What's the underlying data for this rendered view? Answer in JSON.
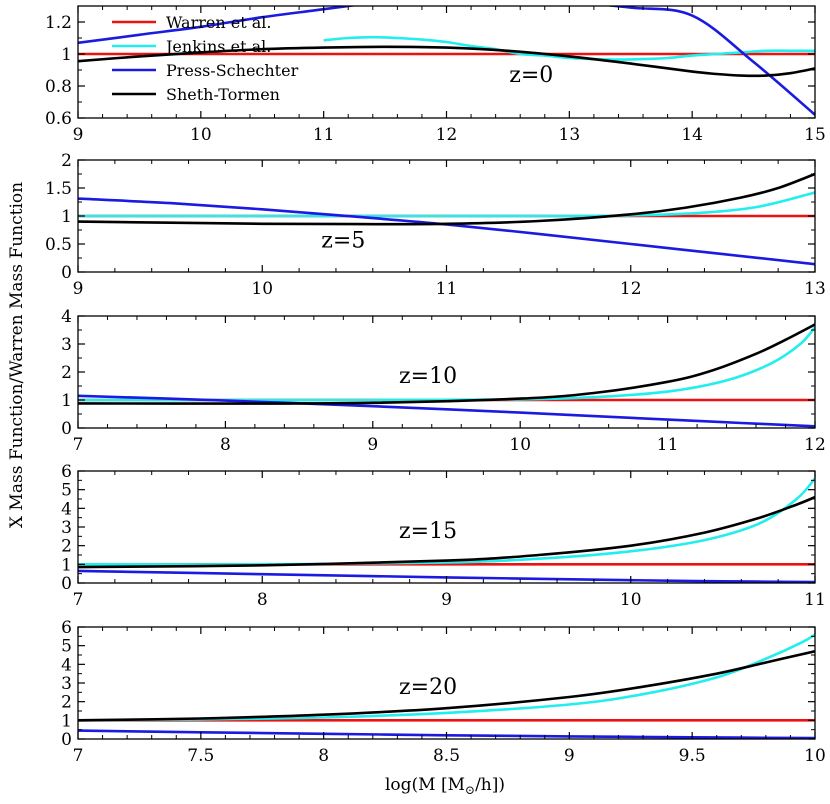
{
  "chart_data": {
    "type": "line",
    "ylabel": "X Mass Function/Warren Mass Function",
    "xlabel": "log(M [M",
    "xlabel_sub": "⊙",
    "xlabel_tail": "/h])",
    "legend": {
      "placement": "top-left of first panel",
      "entries": [
        {
          "name": "Warren et al.",
          "color": "#ee1111"
        },
        {
          "name": "Jenkins et al.",
          "color": "#22eeee"
        },
        {
          "name": "Press-Schechter",
          "color": "#1a1ae0"
        },
        {
          "name": "Sheth-Tormen",
          "color": "#000000"
        }
      ]
    },
    "panels": [
      {
        "label": "z=0",
        "xlim": [
          9,
          15
        ],
        "ylim": [
          0.6,
          1.3
        ],
        "xticks": [
          "9",
          "10",
          "11",
          "12",
          "13",
          "14",
          "15"
        ],
        "yticks": [
          "0.6",
          "0.8",
          "1",
          "1.2"
        ],
        "series": [
          {
            "name": "Warren et al.",
            "x": [
              9,
              15
            ],
            "y": [
              1,
              1
            ]
          },
          {
            "name": "Jenkins et al.",
            "x": [
              11.0,
              11.2,
              11.4,
              11.6,
              11.8,
              12.0,
              12.2,
              12.4,
              12.6,
              12.8,
              13.0,
              13.2,
              13.4,
              13.6,
              13.8,
              14.0,
              14.2,
              14.4,
              14.6,
              14.8,
              15.0
            ],
            "y": [
              1.085,
              1.1,
              1.105,
              1.1,
              1.09,
              1.075,
              1.05,
              1.03,
              1.0,
              0.99,
              0.975,
              0.968,
              0.965,
              0.968,
              0.975,
              0.99,
              1.0,
              1.01,
              1.02,
              1.02,
              1.02
            ]
          },
          {
            "name": "Press-Schechter",
            "x": [
              9.0,
              9.5,
              10.0,
              10.5,
              11.0,
              11.5,
              12.0,
              12.5,
              13.0,
              13.5,
              14.0,
              14.5,
              15.0
            ],
            "y": [
              1.07,
              1.12,
              1.17,
              1.23,
              1.28,
              1.33,
              1.38,
              1.38,
              1.33,
              1.29,
              1.24,
              0.95,
              0.62
            ]
          },
          {
            "name": "Sheth-Tormen",
            "x": [
              9.0,
              9.5,
              10.0,
              10.5,
              11.0,
              11.5,
              12.0,
              12.5,
              13.0,
              13.5,
              14.0,
              14.2,
              14.4,
              14.6,
              14.8,
              15.0
            ],
            "y": [
              0.955,
              0.985,
              1.01,
              1.03,
              1.04,
              1.045,
              1.04,
              1.02,
              0.985,
              0.94,
              0.89,
              0.875,
              0.865,
              0.865,
              0.88,
              0.91
            ]
          }
        ]
      },
      {
        "label": "z=5",
        "xlim": [
          9,
          13
        ],
        "ylim": [
          0,
          2
        ],
        "xticks": [
          "9",
          "10",
          "11",
          "12",
          "13"
        ],
        "yticks": [
          "0",
          "0.5",
          "1",
          "1.5",
          "2"
        ],
        "series": [
          {
            "name": "Warren et al.",
            "x": [
              9,
              13
            ],
            "y": [
              1,
              1
            ]
          },
          {
            "name": "Jenkins et al.",
            "x": [
              9.0,
              9.5,
              10.0,
              10.5,
              11.0,
              11.5,
              12.0,
              12.4,
              12.7,
              13.0
            ],
            "y": [
              1.0,
              1.0,
              1.0,
              1.0,
              1.0,
              1.0,
              1.01,
              1.06,
              1.17,
              1.42
            ]
          },
          {
            "name": "Press-Schechter",
            "x": [
              9.0,
              9.5,
              10.0,
              10.5,
              11.0,
              11.5,
              12.0,
              12.5,
              13.0
            ],
            "y": [
              1.31,
              1.23,
              1.12,
              0.99,
              0.85,
              0.68,
              0.5,
              0.32,
              0.14
            ]
          },
          {
            "name": "Sheth-Tormen",
            "x": [
              9.0,
              9.5,
              10.0,
              10.5,
              11.0,
              11.5,
              12.0,
              12.3,
              12.6,
              12.8,
              13.0
            ],
            "y": [
              0.9,
              0.88,
              0.86,
              0.855,
              0.86,
              0.91,
              1.03,
              1.15,
              1.33,
              1.5,
              1.75
            ]
          }
        ]
      },
      {
        "label": "z=10",
        "xlim": [
          7,
          12
        ],
        "ylim": [
          0,
          4
        ],
        "xticks": [
          "7",
          "8",
          "9",
          "10",
          "11",
          "12"
        ],
        "yticks": [
          "0",
          "1",
          "2",
          "3",
          "4"
        ],
        "series": [
          {
            "name": "Warren et al.",
            "x": [
              7,
              12
            ],
            "y": [
              1,
              1
            ]
          },
          {
            "name": "Jenkins et al.",
            "x": [
              7.0,
              8.0,
              9.0,
              10.0,
              10.5,
              11.0,
              11.4,
              11.7,
              11.9,
              12.0
            ],
            "y": [
              1.0,
              1.0,
              1.0,
              1.02,
              1.1,
              1.3,
              1.7,
              2.3,
              3.0,
              3.6
            ]
          },
          {
            "name": "Press-Schechter",
            "x": [
              7.0,
              8.0,
              9.0,
              10.0,
              11.0,
              11.5,
              12.0
            ],
            "y": [
              1.15,
              0.98,
              0.78,
              0.55,
              0.3,
              0.18,
              0.06
            ]
          },
          {
            "name": "Sheth-Tormen",
            "x": [
              7.0,
              8.0,
              9.0,
              10.0,
              10.5,
              11.0,
              11.3,
              11.6,
              11.8,
              12.0
            ],
            "y": [
              0.88,
              0.87,
              0.9,
              1.05,
              1.25,
              1.65,
              2.05,
              2.65,
              3.15,
              3.7
            ]
          }
        ]
      },
      {
        "label": "z=15",
        "xlim": [
          7,
          11
        ],
        "ylim": [
          0,
          6
        ],
        "xticks": [
          "7",
          "8",
          "9",
          "10",
          "11"
        ],
        "yticks": [
          "0",
          "1",
          "2",
          "3",
          "4",
          "5",
          "6"
        ],
        "series": [
          {
            "name": "Warren et al.",
            "x": [
              7,
              11
            ],
            "y": [
              1,
              1
            ]
          },
          {
            "name": "Jenkins et al.",
            "x": [
              7.0,
              8.0,
              9.0,
              9.5,
              10.0,
              10.4,
              10.7,
              10.9,
              11.0
            ],
            "y": [
              1.0,
              1.0,
              1.1,
              1.3,
              1.7,
              2.3,
              3.2,
              4.5,
              5.6
            ]
          },
          {
            "name": "Press-Schechter",
            "x": [
              7.0,
              8.0,
              9.0,
              10.0,
              10.5,
              11.0
            ],
            "y": [
              0.65,
              0.47,
              0.3,
              0.15,
              0.09,
              0.05
            ]
          },
          {
            "name": "Sheth-Tormen",
            "x": [
              7.0,
              8.0,
              9.0,
              9.5,
              10.0,
              10.4,
              10.7,
              10.9,
              11.0
            ],
            "y": [
              0.85,
              0.95,
              1.2,
              1.5,
              2.0,
              2.7,
              3.5,
              4.2,
              4.6
            ]
          }
        ]
      },
      {
        "label": "z=20",
        "xlim": [
          7,
          10
        ],
        "ylim": [
          0,
          6
        ],
        "xticks": [
          "7",
          "7.5",
          "8",
          "8.5",
          "9",
          "9.5",
          "10"
        ],
        "yticks": [
          "0",
          "1",
          "2",
          "3",
          "4",
          "5",
          "6"
        ],
        "series": [
          {
            "name": "Warren et al.",
            "x": [
              7,
              10
            ],
            "y": [
              1,
              1
            ]
          },
          {
            "name": "Jenkins et al.",
            "x": [
              7.0,
              7.5,
              8.0,
              8.5,
              9.0,
              9.3,
              9.6,
              9.8,
              9.95,
              10.0
            ],
            "y": [
              1.0,
              1.05,
              1.15,
              1.4,
              1.85,
              2.4,
              3.3,
              4.3,
              5.2,
              5.6
            ]
          },
          {
            "name": "Press-Schechter",
            "x": [
              7.0,
              7.5,
              8.0,
              8.5,
              9.0,
              9.5,
              10.0
            ],
            "y": [
              0.45,
              0.36,
              0.28,
              0.2,
              0.14,
              0.09,
              0.05
            ]
          },
          {
            "name": "Sheth-Tormen",
            "x": [
              7.0,
              7.5,
              8.0,
              8.5,
              9.0,
              9.3,
              9.6,
              9.8,
              10.0
            ],
            "y": [
              1.0,
              1.1,
              1.3,
              1.65,
              2.25,
              2.8,
              3.5,
              4.1,
              4.7
            ]
          }
        ]
      }
    ]
  }
}
